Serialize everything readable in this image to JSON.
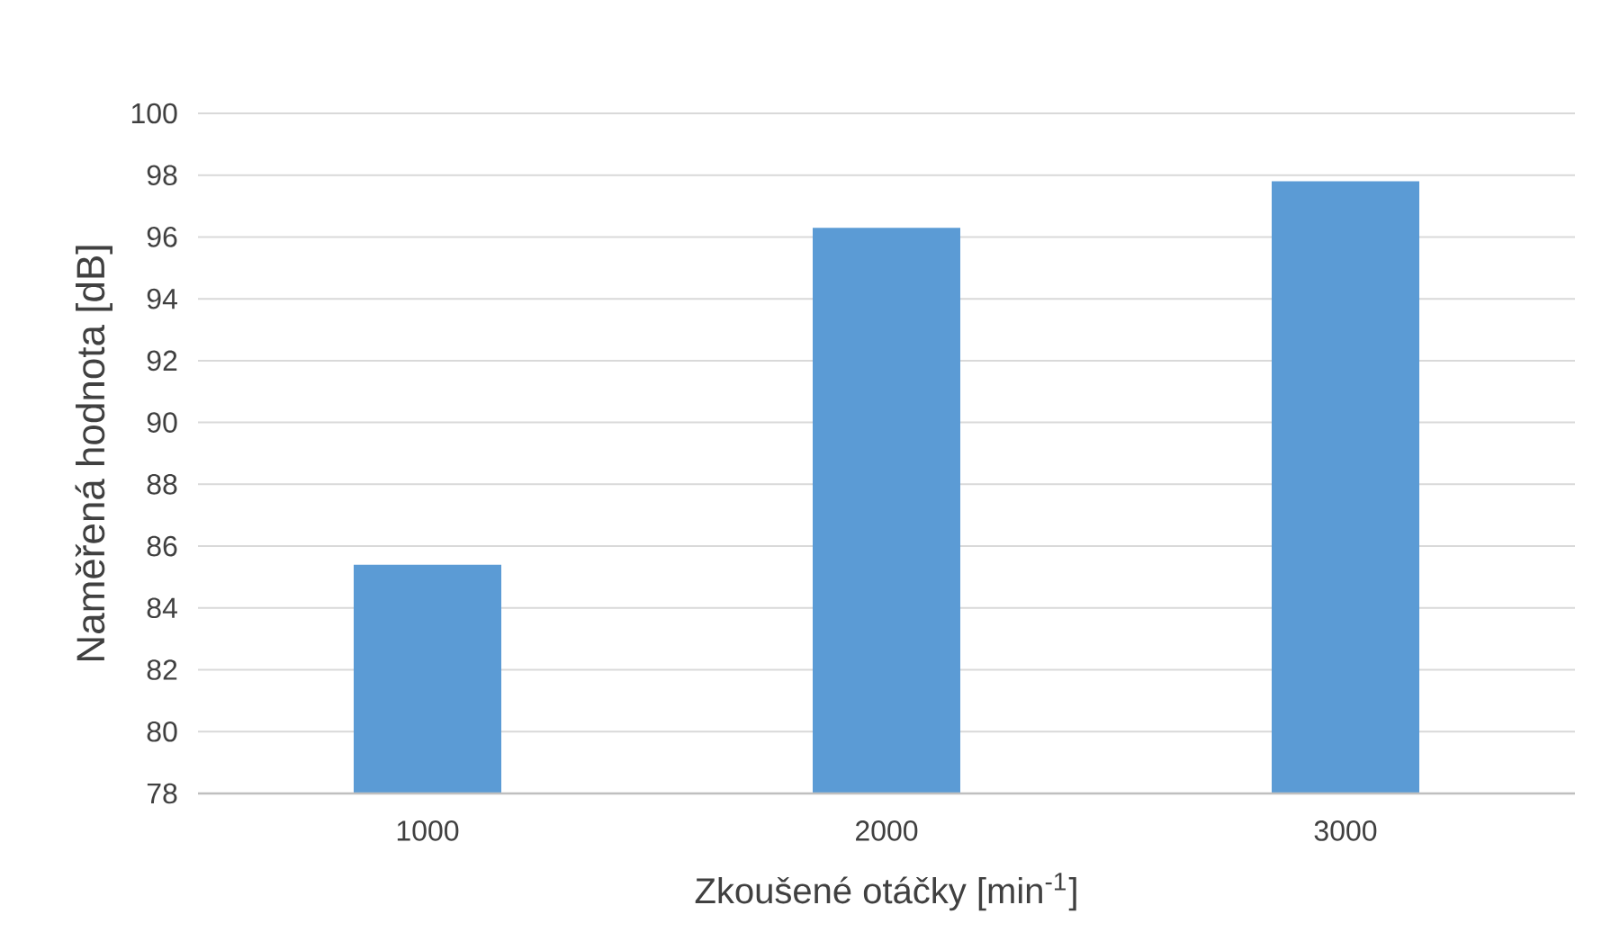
{
  "chart_data": {
    "type": "bar",
    "categories": [
      "1000",
      "2000",
      "3000"
    ],
    "values": [
      85.4,
      96.3,
      97.8
    ],
    "color": "#5b9bd5",
    "xlabel": "Zkoušené otáčky [min$^{-1}$]",
    "ylabel": "Naměřená hodnota [dB]",
    "ylim": [
      78,
      100
    ],
    "yticks": [
      78,
      80,
      82,
      84,
      86,
      88,
      90,
      92,
      94,
      96,
      98,
      100
    ],
    "grid": "y"
  }
}
